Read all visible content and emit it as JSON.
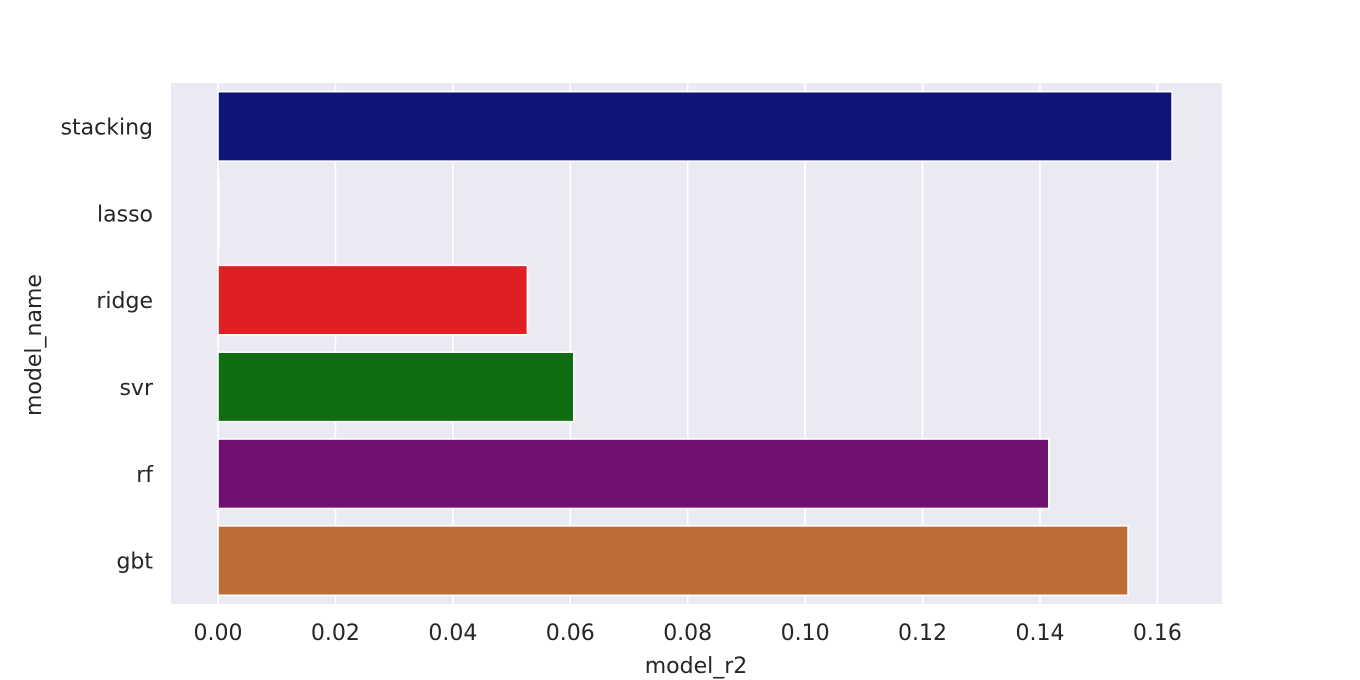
{
  "chart_data": {
    "type": "bar",
    "orientation": "horizontal",
    "categories": [
      "stacking",
      "lasso",
      "ridge",
      "svr",
      "rf",
      "gbt"
    ],
    "values": [
      0.1625,
      0.0,
      0.0527,
      0.0606,
      0.1415,
      0.155
    ],
    "colors": [
      "#10137a",
      "#ffffff",
      "#de1f23",
      "#106e12",
      "#721071",
      "#bd6d37"
    ],
    "xlabel": "model_r2",
    "ylabel": "model_name",
    "xlim": [
      -0.008,
      0.171
    ],
    "xticks": [
      0.0,
      0.02,
      0.04,
      0.06,
      0.08,
      0.1,
      0.12,
      0.14,
      0.16
    ],
    "xtick_labels": [
      "0.00",
      "0.02",
      "0.04",
      "0.06",
      "0.08",
      "0.10",
      "0.12",
      "0.14",
      "0.16"
    ],
    "grid": true,
    "grid_axis": "x",
    "plot_background": "#eaeaf2"
  }
}
